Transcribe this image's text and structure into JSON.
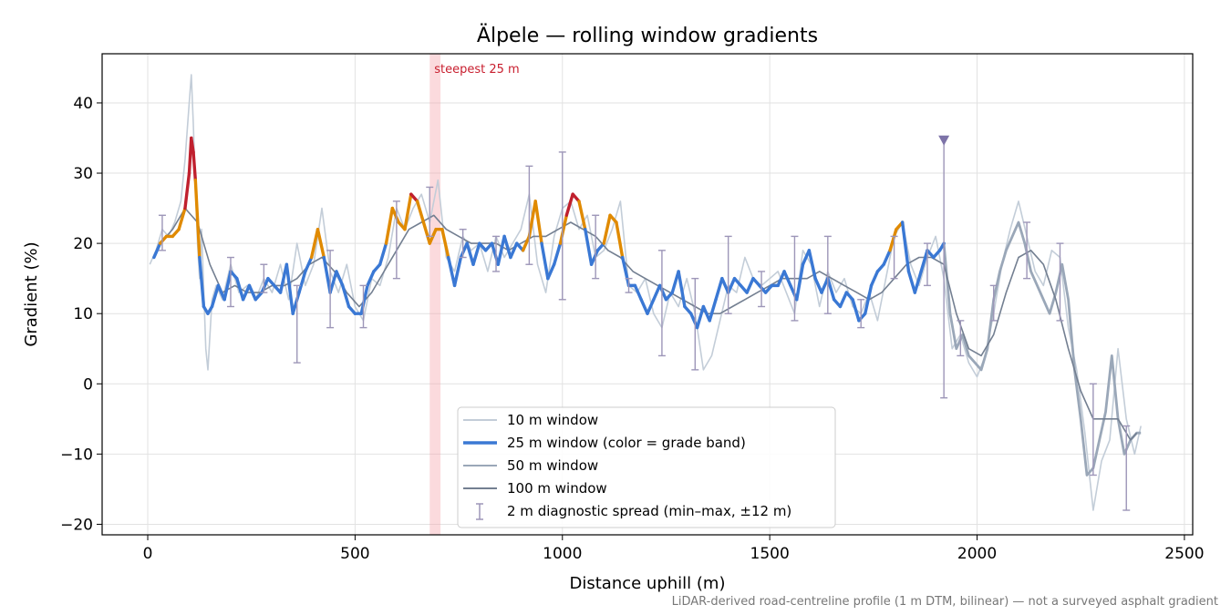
{
  "chart_data": {
    "type": "line",
    "title": "Älpele — rolling window gradients",
    "xlabel": "Distance uphill (m)",
    "ylabel": "Gradient (%)",
    "xlim": [
      -110,
      2520
    ],
    "ylim": [
      -21.5,
      47
    ],
    "xticks": [
      0,
      500,
      1000,
      1500,
      2000,
      2500
    ],
    "yticks": [
      -20,
      -10,
      0,
      10,
      20,
      30,
      40
    ],
    "xtick_labels": [
      "0",
      "500",
      "1000",
      "1500",
      "2000",
      "2500"
    ],
    "ytick_labels": [
      "−20",
      "−10",
      "0",
      "10",
      "20",
      "30",
      "40"
    ],
    "grid": true,
    "legend_position": "lower-center",
    "annotation": {
      "text": "steepest 25 m",
      "x_start": 680,
      "x_end": 706
    },
    "marker": {
      "x": 1920,
      "y": 34.7
    },
    "grade_band_colors": {
      "low": "#3a78d4",
      "mid": "#e08a00",
      "high": "#c0202e"
    },
    "footnote": "LiDAR-derived road-centreline profile (1 m DTM, bilinear) — not a surveyed asphalt gradient",
    "series": [
      {
        "name": "10 m window",
        "color": "#c3cdd8",
        "x": [
          5,
          20,
          35,
          50,
          65,
          80,
          90,
          100,
          105,
          110,
          115,
          120,
          125,
          130,
          140,
          145,
          155,
          165,
          180,
          200,
          220,
          240,
          260,
          280,
          300,
          320,
          340,
          360,
          380,
          400,
          420,
          440,
          460,
          480,
          500,
          520,
          540,
          560,
          580,
          600,
          620,
          640,
          660,
          680,
          700,
          720,
          740,
          760,
          780,
          800,
          820,
          840,
          860,
          880,
          900,
          920,
          940,
          960,
          980,
          1000,
          1020,
          1040,
          1060,
          1080,
          1100,
          1120,
          1140,
          1160,
          1180,
          1200,
          1220,
          1240,
          1260,
          1280,
          1300,
          1320,
          1340,
          1360,
          1380,
          1400,
          1420,
          1440,
          1460,
          1480,
          1500,
          1520,
          1540,
          1560,
          1580,
          1600,
          1620,
          1640,
          1660,
          1680,
          1700,
          1720,
          1740,
          1760,
          1780,
          1800,
          1820,
          1840,
          1860,
          1880,
          1900,
          1920,
          1940,
          1960,
          1980,
          2000,
          2020,
          2040,
          2060,
          2080,
          2100,
          2120,
          2140,
          2160,
          2180,
          2200,
          2220,
          2240,
          2260,
          2280,
          2300,
          2320,
          2340,
          2360,
          2380,
          2395
        ],
        "values": [
          17,
          19,
          22,
          21,
          23,
          26,
          32,
          40,
          44,
          37,
          28,
          20,
          15,
          22,
          5,
          2,
          12,
          14,
          12,
          17,
          13,
          14,
          12,
          15,
          13,
          17,
          12,
          20,
          14,
          17,
          25,
          16,
          13,
          17,
          11,
          9,
          15,
          14,
          18,
          25,
          22,
          25,
          27,
          23,
          29,
          18,
          16,
          21,
          19,
          20,
          16,
          21,
          18,
          20,
          22,
          27,
          17,
          13,
          21,
          25,
          26,
          22,
          24,
          18,
          19,
          22,
          26,
          14,
          13,
          15,
          10,
          8,
          13,
          11,
          15,
          10,
          2,
          4,
          9,
          14,
          13,
          18,
          15,
          14,
          15,
          16,
          13,
          10,
          19,
          17,
          11,
          16,
          13,
          15,
          11,
          10,
          13,
          9,
          15,
          21,
          23,
          17,
          14,
          18,
          21,
          15,
          5,
          7,
          3,
          1,
          4,
          10,
          17,
          22,
          26,
          21,
          16,
          14,
          19,
          18,
          8,
          2,
          -7,
          -18,
          -11,
          -8,
          5,
          -5,
          -10,
          -6
        ]
      },
      {
        "name": "25 m window (color = grade band)",
        "color": "#3a78d4",
        "x": [
          15,
          30,
          45,
          60,
          75,
          90,
          100,
          105,
          110,
          115,
          125,
          135,
          145,
          155,
          170,
          185,
          200,
          215,
          230,
          245,
          260,
          275,
          290,
          305,
          320,
          335,
          350,
          365,
          380,
          395,
          410,
          425,
          440,
          455,
          470,
          485,
          500,
          515,
          530,
          545,
          560,
          575,
          590,
          605,
          620,
          635,
          650,
          665,
          680,
          695,
          710,
          725,
          740,
          755,
          770,
          785,
          800,
          815,
          830,
          845,
          860,
          875,
          890,
          905,
          920,
          935,
          950,
          965,
          980,
          995,
          1010,
          1025,
          1040,
          1055,
          1070,
          1085,
          1100,
          1115,
          1130,
          1145,
          1160,
          1175,
          1190,
          1205,
          1220,
          1235,
          1250,
          1265,
          1280,
          1295,
          1310,
          1325,
          1340,
          1355,
          1370,
          1385,
          1400,
          1415,
          1430,
          1445,
          1460,
          1475,
          1490,
          1505,
          1520,
          1535,
          1550,
          1565,
          1580,
          1595,
          1610,
          1625,
          1640,
          1655,
          1670,
          1685,
          1700,
          1715,
          1730,
          1745,
          1760,
          1775,
          1790,
          1805,
          1820,
          1835,
          1850,
          1865,
          1880,
          1895,
          1910,
          1920
        ],
        "values": [
          18,
          20,
          21,
          21,
          22,
          25,
          30,
          35,
          33,
          29,
          18,
          11,
          10,
          11,
          14,
          12,
          16,
          15,
          12,
          14,
          12,
          13,
          15,
          14,
          13,
          17,
          10,
          13,
          16,
          18,
          22,
          18,
          13,
          16,
          14,
          11,
          10,
          10,
          14,
          16,
          17,
          20,
          25,
          23,
          22,
          27,
          26,
          23,
          20,
          22,
          22,
          18,
          14,
          18,
          20,
          17,
          20,
          19,
          20,
          17,
          21,
          18,
          20,
          19,
          21,
          26,
          20,
          15,
          17,
          20,
          24,
          27,
          26,
          22,
          17,
          19,
          20,
          24,
          23,
          18,
          14,
          14,
          12,
          10,
          12,
          14,
          12,
          13,
          16,
          11,
          10,
          8,
          11,
          9,
          12,
          15,
          13,
          15,
          14,
          13,
          15,
          14,
          13,
          14,
          14,
          16,
          14,
          12,
          17,
          19,
          15,
          13,
          15,
          12,
          11,
          13,
          12,
          9,
          10,
          14,
          16,
          17,
          19,
          22,
          23,
          16,
          13,
          16,
          19,
          18,
          19,
          20
        ]
      },
      {
        "name": "50 m window",
        "color": "#9aa7b8",
        "x": [
          1920,
          1935,
          1950,
          1965,
          1980,
          1995,
          2010,
          2025,
          2040,
          2055,
          2070,
          2085,
          2100,
          2115,
          2130,
          2145,
          2160,
          2175,
          2190,
          2205,
          2220,
          2235,
          2250,
          2265,
          2280,
          2295,
          2310,
          2325,
          2340,
          2355,
          2370,
          2385,
          2395
        ],
        "values": [
          20,
          10,
          5,
          7,
          4,
          3,
          2,
          5,
          12,
          16,
          19,
          21,
          23,
          20,
          16,
          14,
          12,
          10,
          13,
          17,
          12,
          2,
          -5,
          -13,
          -12,
          -8,
          -4,
          4,
          -5,
          -10,
          -8,
          -7,
          -7
        ]
      },
      {
        "name": "100 m window",
        "color": "#737f91",
        "x": [
          30,
          60,
          90,
          120,
          150,
          180,
          210,
          240,
          270,
          300,
          330,
          360,
          390,
          420,
          450,
          480,
          510,
          540,
          570,
          600,
          630,
          660,
          690,
          720,
          750,
          780,
          810,
          840,
          870,
          900,
          930,
          960,
          990,
          1020,
          1050,
          1080,
          1110,
          1140,
          1170,
          1200,
          1230,
          1260,
          1290,
          1320,
          1350,
          1380,
          1410,
          1440,
          1470,
          1500,
          1530,
          1560,
          1590,
          1620,
          1650,
          1680,
          1710,
          1740,
          1770,
          1800,
          1830,
          1860,
          1890,
          1920,
          1950,
          1980,
          2010,
          2040,
          2070,
          2100,
          2130,
          2160,
          2190,
          2220,
          2250,
          2280,
          2310,
          2340,
          2370,
          2385
        ],
        "values": [
          20,
          22,
          25,
          23,
          17,
          13,
          14,
          13,
          13,
          14,
          14,
          15,
          17,
          18,
          16,
          13,
          11,
          13,
          16,
          19,
          22,
          23,
          24,
          22,
          21,
          20,
          20,
          20,
          19,
          20,
          21,
          21,
          22,
          23,
          22,
          21,
          19,
          18,
          16,
          15,
          14,
          13,
          12,
          11,
          10,
          10,
          11,
          12,
          13,
          14,
          15,
          15,
          15,
          16,
          15,
          14,
          13,
          12,
          13,
          15,
          17,
          18,
          18,
          17,
          10,
          5,
          4,
          7,
          13,
          18,
          19,
          17,
          12,
          5,
          -1,
          -5,
          -5,
          -5,
          -8,
          -7
        ]
      }
    ],
    "error_bars": {
      "name": "2 m diagnostic spread (min–max, ±12 m)",
      "color": "#9d96b8",
      "x": [
        35,
        200,
        280,
        360,
        440,
        520,
        600,
        680,
        760,
        840,
        920,
        1000,
        1080,
        1160,
        1240,
        1320,
        1400,
        1480,
        1560,
        1640,
        1720,
        1800,
        1880,
        1920,
        1960,
        2040,
        2120,
        2200,
        2280,
        2360
      ],
      "low": [
        19,
        11,
        13,
        3,
        8,
        8,
        15,
        21,
        18,
        16,
        17,
        12,
        15,
        13,
        4,
        2,
        10,
        11,
        9,
        10,
        8,
        15,
        14,
        -2,
        4,
        9,
        15,
        9,
        -13,
        -18
      ],
      "high": [
        24,
        18,
        17,
        14,
        19,
        14,
        26,
        28,
        22,
        21,
        31,
        33,
        24,
        15,
        19,
        15,
        21,
        16,
        21,
        21,
        12,
        21,
        20,
        35,
        9,
        14,
        23,
        20,
        0,
        -6
      ]
    }
  }
}
